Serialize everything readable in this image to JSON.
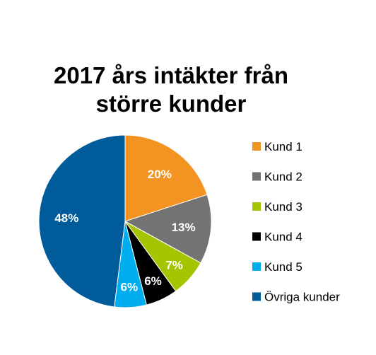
{
  "chart_data": {
    "type": "pie",
    "title_lines": [
      "2017 års intäkter från",
      "större kunder"
    ],
    "start_angle_deg": 0,
    "direction": "clockwise",
    "legend_position": "right",
    "slices": [
      {
        "label": "Kund 1",
        "value": 20,
        "value_label": "20%",
        "color": "#F39321",
        "label_color": "#FFFFFF"
      },
      {
        "label": "Kund 2",
        "value": 13,
        "value_label": "13%",
        "color": "#737373",
        "label_color": "#FFFFFF"
      },
      {
        "label": "Kund 3",
        "value": 7,
        "value_label": "7%",
        "color": "#A6C500",
        "label_color": "#FFFFFF"
      },
      {
        "label": "Kund 4",
        "value": 6,
        "value_label": "6%",
        "color": "#000000",
        "label_color": "#FFFFFF"
      },
      {
        "label": "Kund 5",
        "value": 6,
        "value_label": "6%",
        "color": "#00AEEF",
        "label_color": "#FFFFFF"
      },
      {
        "label": "Övriga kunder",
        "value": 48,
        "value_label": "48%",
        "color": "#005B9A",
        "label_color": "#FFFFFF"
      }
    ]
  }
}
